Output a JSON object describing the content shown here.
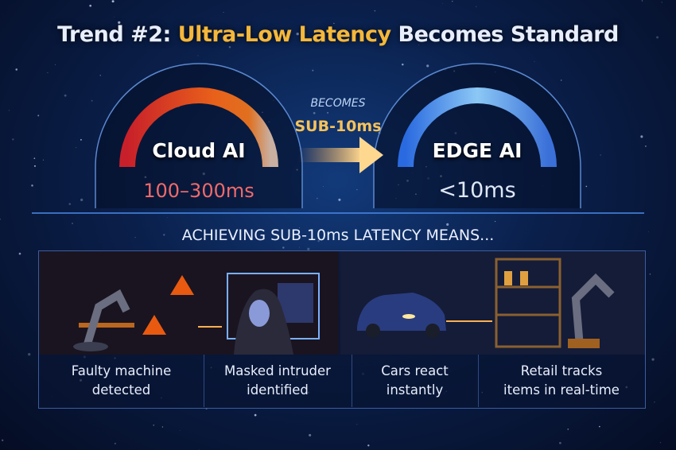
{
  "title": {
    "prefix": "Trend #2: ",
    "highlight": "Ultra-Low Latency",
    "suffix": " Becomes Standard"
  },
  "left_gauge": {
    "label": "Cloud AI",
    "latency": "100–300ms",
    "colors": [
      "#c8202a",
      "#e8601a",
      "#c9b0a0"
    ]
  },
  "middle": {
    "becomes": "BECOMES",
    "target": "SUB-10ms"
  },
  "right_gauge": {
    "label": "EDGE AI",
    "latency": "<10ms",
    "colors": [
      "#2a6ae0",
      "#7ab8f0"
    ]
  },
  "subtitle": "ACHIEVING SUB-10ms LATENCY MEANS...",
  "examples": [
    {
      "caption_line1": "Faulty machine",
      "caption_line2": "detected",
      "icon": "robot-arm-warning-icon"
    },
    {
      "caption_line1": "Masked intruder",
      "caption_line2": "identified",
      "icon": "hooded-intruder-icon"
    },
    {
      "caption_line1": "Cars react",
      "caption_line2": "instantly",
      "icon": "car-icon"
    },
    {
      "caption_line1": "Retail tracks",
      "caption_line2": "items in real-time",
      "icon": "retail-shelf-robot-icon"
    }
  ]
}
